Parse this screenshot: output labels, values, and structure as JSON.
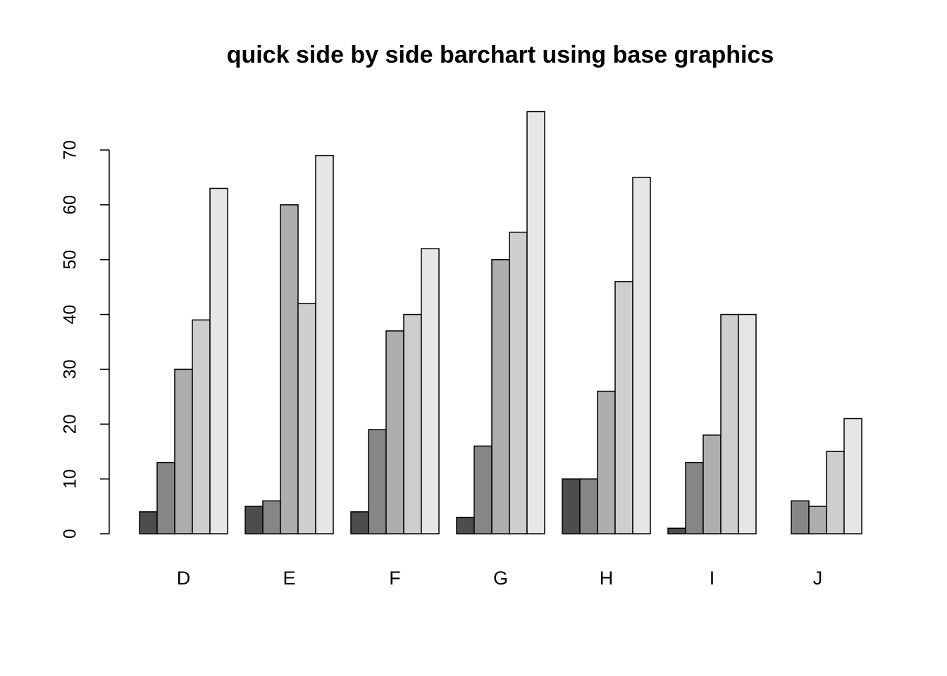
{
  "chart_data": {
    "type": "bar",
    "title": "quick side by side barchart using base graphics",
    "categories": [
      "D",
      "E",
      "F",
      "G",
      "H",
      "I",
      "J"
    ],
    "series": [
      {
        "color": "#4d4d4d",
        "values": [
          4,
          5,
          4,
          3,
          10,
          1,
          0
        ]
      },
      {
        "color": "#868686",
        "values": [
          13,
          6,
          19,
          16,
          10,
          13,
          6
        ]
      },
      {
        "color": "#aeaeae",
        "values": [
          30,
          60,
          37,
          50,
          26,
          18,
          5
        ]
      },
      {
        "color": "#cecece",
        "values": [
          39,
          42,
          40,
          55,
          46,
          40,
          15
        ]
      },
      {
        "color": "#e6e6e6",
        "values": [
          63,
          69,
          52,
          77,
          65,
          40,
          21
        ]
      }
    ],
    "ylim": [
      0,
      77
    ],
    "yticks": [
      0,
      10,
      20,
      30,
      40,
      50,
      60,
      70
    ],
    "grid": false
  }
}
